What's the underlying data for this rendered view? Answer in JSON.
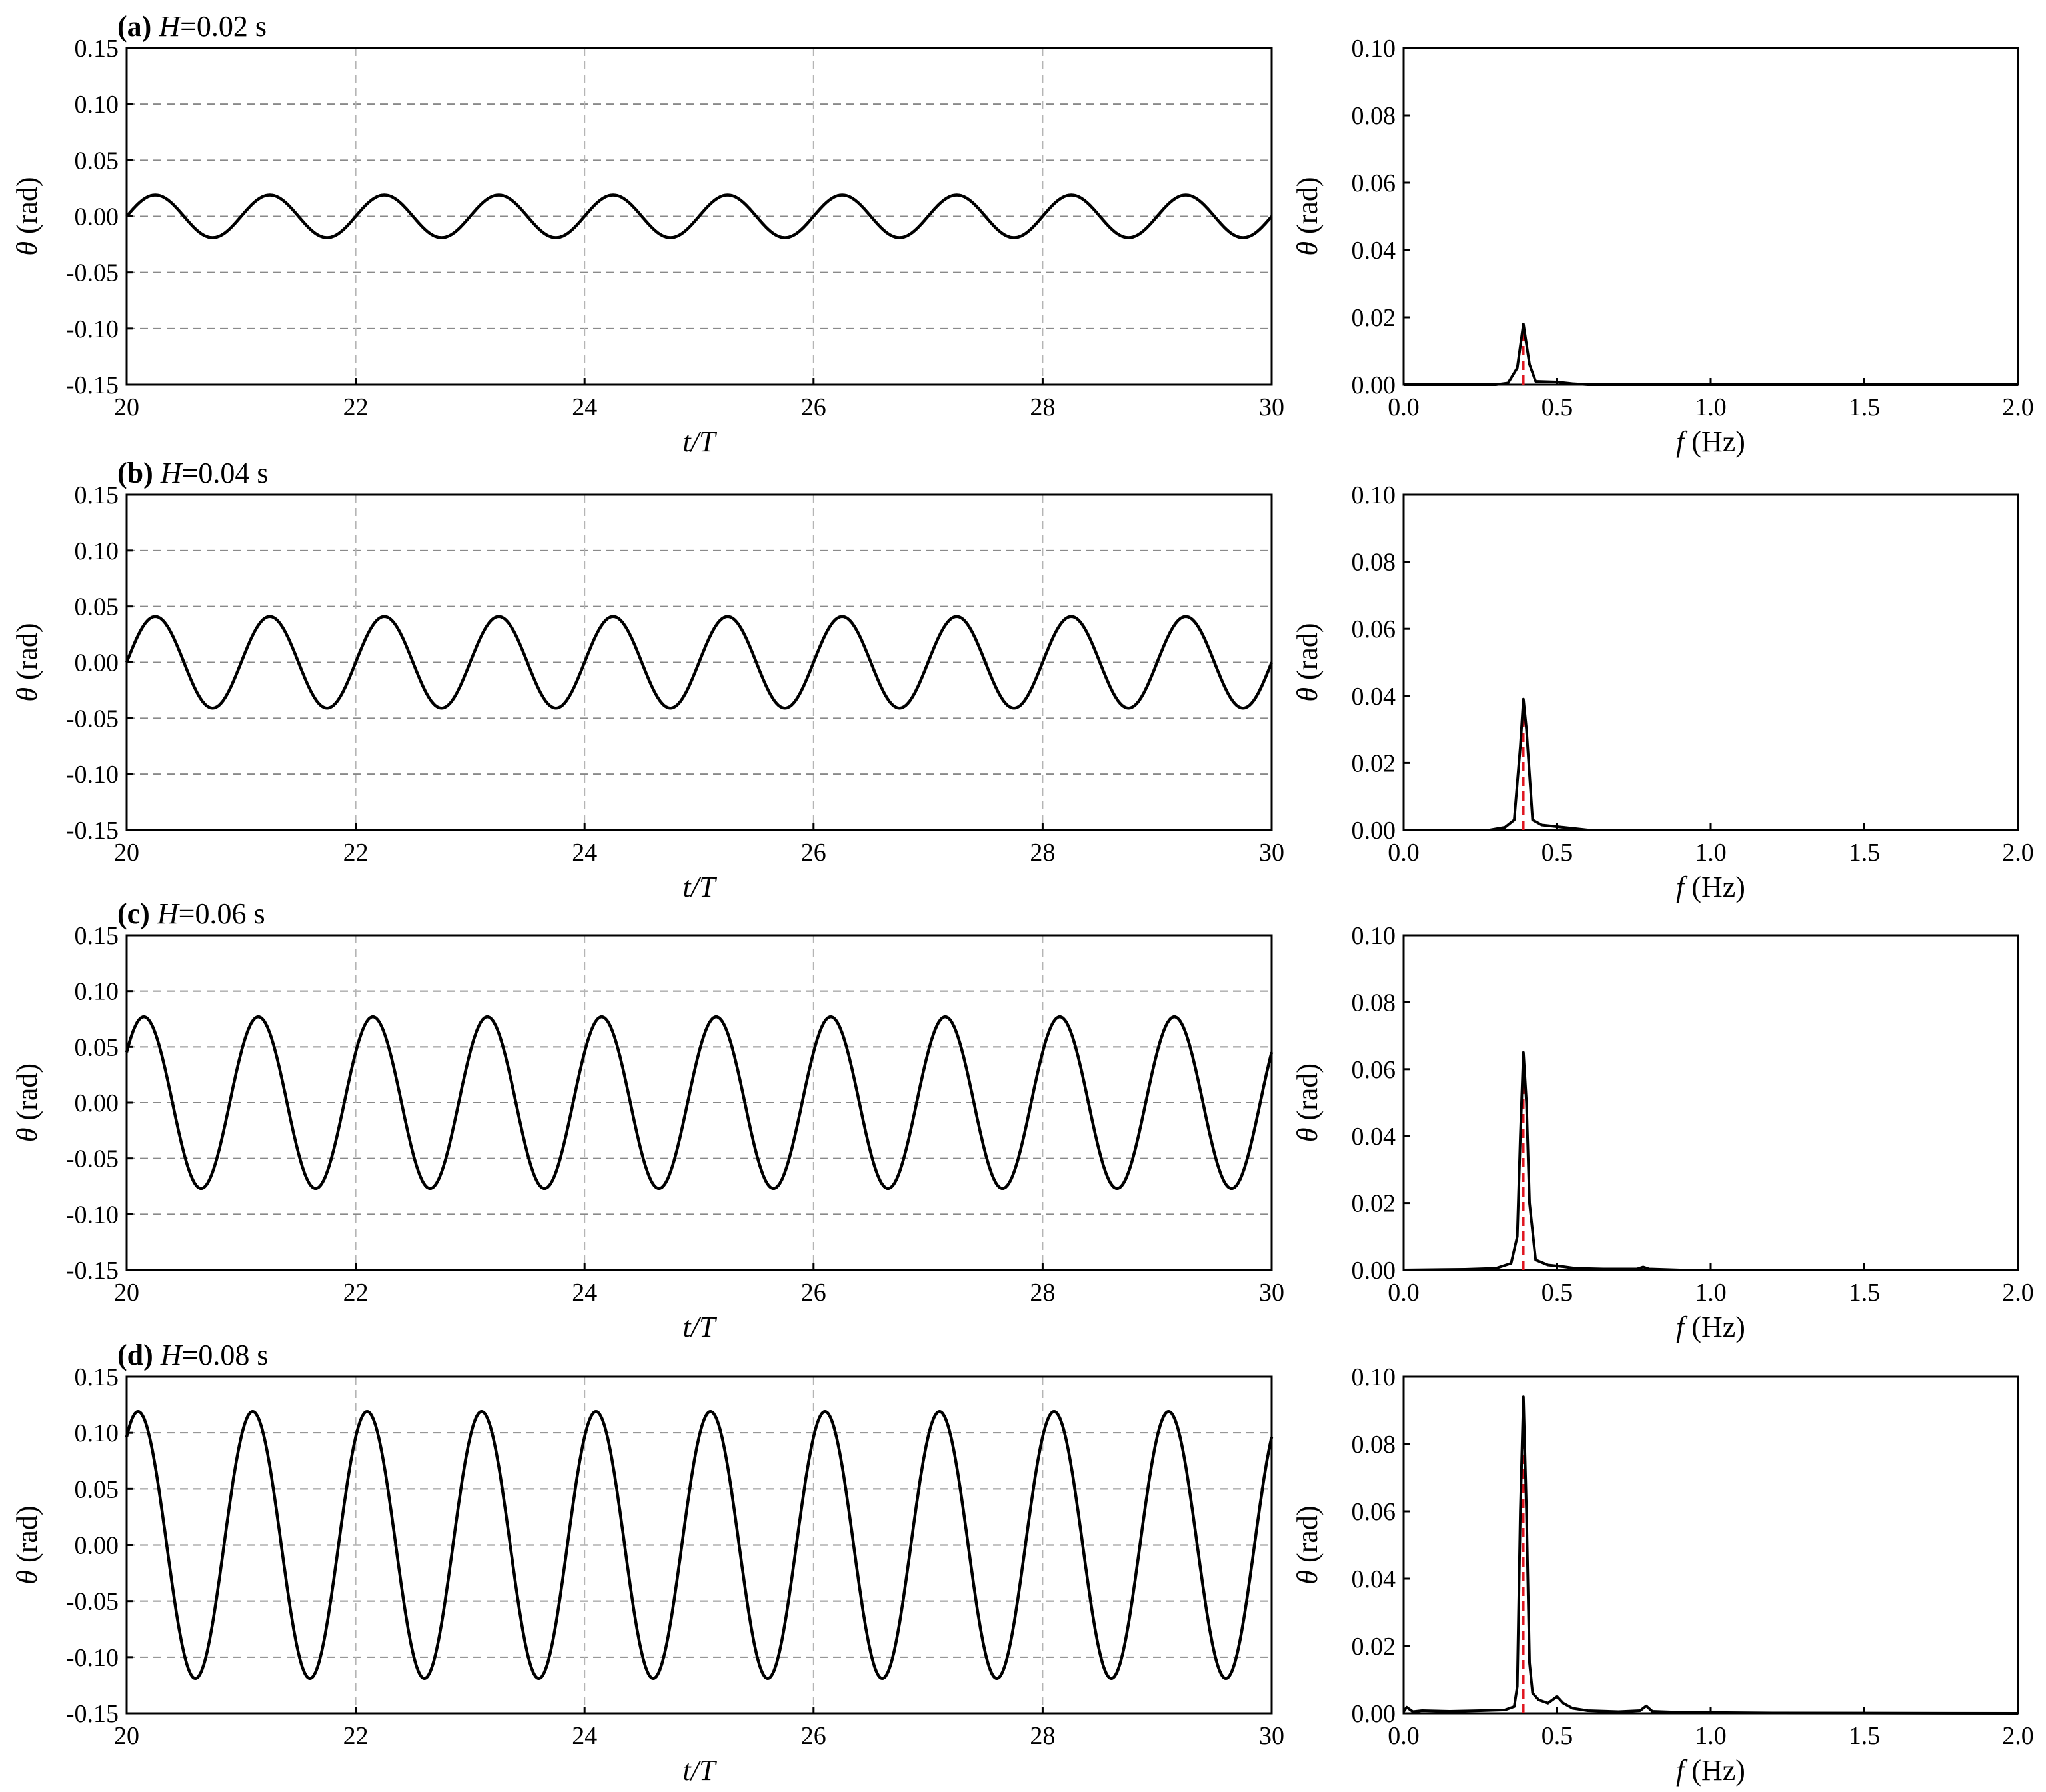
{
  "chart_data": [
    {
      "type": "line",
      "panel": "a",
      "title": {
        "label": "(a)",
        "var": "H",
        "value": "=0.02 s"
      },
      "xlabel": {
        "var": "t/T",
        "unit": ""
      },
      "ylabel": {
        "var": "θ",
        "unit": " (rad)"
      },
      "xlim": [
        20,
        30
      ],
      "ylim": [
        -0.15,
        0.15
      ],
      "xticks": [
        "20",
        "22",
        "24",
        "26",
        "28",
        "30"
      ],
      "yticks": [
        "-0.15",
        "-0.10",
        "-0.05",
        "0.00",
        "0.05",
        "0.10",
        "0.15"
      ],
      "grid": "dashed",
      "series": [
        {
          "amplitude": 0.019,
          "period": 1.0,
          "phase_zero_crossing": 20.0,
          "x": [
            20,
            30
          ]
        }
      ]
    },
    {
      "type": "line",
      "panel": "a-spectrum",
      "xlabel": {
        "var": "f",
        "unit": " (Hz)"
      },
      "ylabel": {
        "var": "θ",
        "unit": " (rad)"
      },
      "xlim": [
        0.0,
        2.0
      ],
      "ylim": [
        0.0,
        0.1
      ],
      "xticks": [
        "0.0",
        "0.5",
        "1.0",
        "1.5",
        "2.0"
      ],
      "yticks": [
        "0.00",
        "0.02",
        "0.04",
        "0.06",
        "0.08",
        "0.10"
      ],
      "grid": "none",
      "peak_frequency": 0.39,
      "series": [
        {
          "x": [
            0.0,
            0.3,
            0.34,
            0.37,
            0.39,
            0.41,
            0.43,
            0.5,
            0.55,
            0.6,
            2.0
          ],
          "y": [
            0.0,
            0.0,
            0.0005,
            0.005,
            0.018,
            0.006,
            0.001,
            0.0008,
            0.0003,
            0.0,
            0.0
          ]
        }
      ]
    },
    {
      "type": "line",
      "panel": "b",
      "title": {
        "label": "(b)",
        "var": "H",
        "value": "=0.04 s"
      },
      "xlabel": {
        "var": "t/T",
        "unit": ""
      },
      "ylabel": {
        "var": "θ",
        "unit": " (rad)"
      },
      "xlim": [
        20,
        30
      ],
      "ylim": [
        -0.15,
        0.15
      ],
      "xticks": [
        "20",
        "22",
        "24",
        "26",
        "28",
        "30"
      ],
      "yticks": [
        "-0.15",
        "-0.10",
        "-0.05",
        "0.00",
        "0.05",
        "0.10",
        "0.15"
      ],
      "grid": "dashed",
      "series": [
        {
          "amplitude": 0.041,
          "period": 1.0,
          "phase_zero_crossing": 20.0,
          "x": [
            20,
            30
          ]
        }
      ]
    },
    {
      "type": "line",
      "panel": "b-spectrum",
      "xlabel": {
        "var": "f",
        "unit": " (Hz)"
      },
      "ylabel": {
        "var": "θ",
        "unit": " (rad)"
      },
      "xlim": [
        0.0,
        2.0
      ],
      "ylim": [
        0.0,
        0.1
      ],
      "xticks": [
        "0.0",
        "0.5",
        "1.0",
        "1.5",
        "2.0"
      ],
      "yticks": [
        "0.00",
        "0.02",
        "0.04",
        "0.06",
        "0.08",
        "0.10"
      ],
      "grid": "none",
      "peak_frequency": 0.39,
      "series": [
        {
          "x": [
            0.0,
            0.28,
            0.33,
            0.36,
            0.38,
            0.39,
            0.4,
            0.42,
            0.45,
            0.5,
            0.56,
            0.6,
            2.0
          ],
          "y": [
            0.0,
            0.0,
            0.0008,
            0.003,
            0.025,
            0.039,
            0.03,
            0.003,
            0.0015,
            0.001,
            0.0004,
            0.0,
            0.0
          ]
        }
      ]
    },
    {
      "type": "line",
      "panel": "c",
      "title": {
        "label": "(c)",
        "var": "H",
        "value": "=0.06 s"
      },
      "xlabel": {
        "var": "t/T",
        "unit": ""
      },
      "ylabel": {
        "var": "θ",
        "unit": " (rad)"
      },
      "xlim": [
        20,
        30
      ],
      "ylim": [
        -0.15,
        0.15
      ],
      "xticks": [
        "20",
        "22",
        "24",
        "26",
        "28",
        "30"
      ],
      "yticks": [
        "-0.15",
        "-0.10",
        "-0.05",
        "0.00",
        "0.05",
        "0.10",
        "0.15"
      ],
      "grid": "dashed",
      "series": [
        {
          "amplitude": 0.077,
          "period": 1.0,
          "phase_zero_crossing": 19.9,
          "x": [
            20,
            30
          ]
        }
      ]
    },
    {
      "type": "line",
      "panel": "c-spectrum",
      "xlabel": {
        "var": "f",
        "unit": " (Hz)"
      },
      "ylabel": {
        "var": "θ",
        "unit": " (rad)"
      },
      "xlim": [
        0.0,
        2.0
      ],
      "ylim": [
        0.0,
        0.1
      ],
      "xticks": [
        "0.0",
        "0.5",
        "1.0",
        "1.5",
        "2.0"
      ],
      "yticks": [
        "0.00",
        "0.02",
        "0.04",
        "0.06",
        "0.08",
        "0.10"
      ],
      "grid": "none",
      "peak_frequency": 0.39,
      "series": [
        {
          "x": [
            0.0,
            0.2,
            0.3,
            0.35,
            0.37,
            0.38,
            0.39,
            0.4,
            0.41,
            0.43,
            0.47,
            0.52,
            0.56,
            0.65,
            0.76,
            0.78,
            0.8,
            0.9,
            2.0
          ],
          "y": [
            0.0,
            0.0002,
            0.0005,
            0.002,
            0.01,
            0.04,
            0.065,
            0.05,
            0.02,
            0.003,
            0.0015,
            0.001,
            0.0005,
            0.0003,
            0.0003,
            0.0009,
            0.0003,
            0.0,
            0.0
          ]
        }
      ]
    },
    {
      "type": "line",
      "panel": "d",
      "title": {
        "label": "(d)",
        "var": "H",
        "value": "=0.08 s"
      },
      "xlabel": {
        "var": "t/T",
        "unit": ""
      },
      "ylabel": {
        "var": "θ",
        "unit": " (rad)"
      },
      "xlim": [
        20,
        30
      ],
      "ylim": [
        -0.15,
        0.15
      ],
      "xticks": [
        "20",
        "22",
        "24",
        "26",
        "28",
        "30"
      ],
      "yticks": [
        "-0.15",
        "-0.10",
        "-0.05",
        "0.00",
        "0.05",
        "0.10",
        "0.15"
      ],
      "grid": "dashed",
      "series": [
        {
          "amplitude": 0.119,
          "period": 1.0,
          "phase_zero_crossing": 19.85,
          "x": [
            20,
            30
          ]
        }
      ]
    },
    {
      "type": "line",
      "panel": "d-spectrum",
      "xlabel": {
        "var": "f",
        "unit": " (Hz)"
      },
      "ylabel": {
        "var": "θ",
        "unit": " (rad)"
      },
      "xlim": [
        0.0,
        2.0
      ],
      "ylim": [
        0.0,
        0.1
      ],
      "xticks": [
        "0.0",
        "0.5",
        "1.0",
        "1.5",
        "2.0"
      ],
      "yticks": [
        "0.00",
        "0.02",
        "0.04",
        "0.06",
        "0.08",
        "0.10"
      ],
      "grid": "none",
      "peak_frequency": 0.39,
      "series": [
        {
          "x": [
            0.0,
            0.01,
            0.03,
            0.06,
            0.15,
            0.25,
            0.33,
            0.36,
            0.37,
            0.38,
            0.39,
            0.4,
            0.41,
            0.42,
            0.44,
            0.47,
            0.5,
            0.52,
            0.55,
            0.6,
            0.7,
            0.77,
            0.79,
            0.81,
            0.9,
            1.2,
            2.0
          ],
          "y": [
            0.0005,
            0.0018,
            0.0005,
            0.0008,
            0.0006,
            0.0008,
            0.001,
            0.002,
            0.008,
            0.06,
            0.094,
            0.06,
            0.015,
            0.006,
            0.004,
            0.003,
            0.005,
            0.003,
            0.0015,
            0.0008,
            0.0005,
            0.0008,
            0.0022,
            0.0006,
            0.0003,
            0.0001,
            0.0
          ]
        }
      ]
    }
  ]
}
